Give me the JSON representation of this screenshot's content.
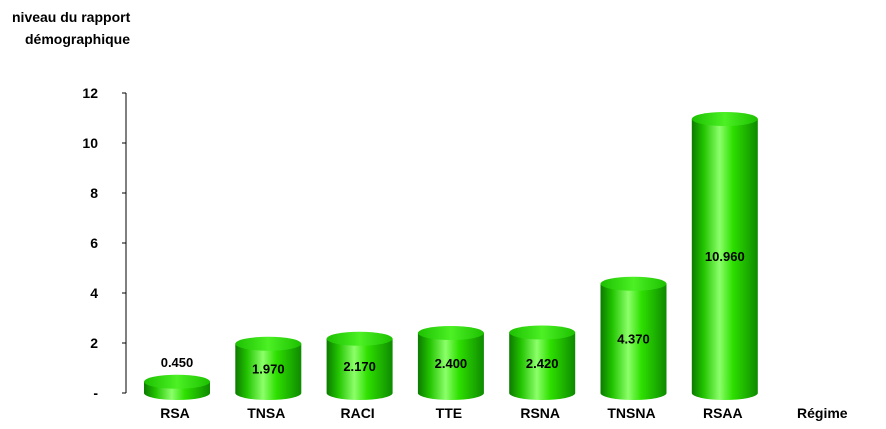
{
  "chart_data": {
    "type": "bar",
    "ylabel_lines": [
      "niveau du rapport",
      "démographique"
    ],
    "xlabel": "Régime",
    "categories": [
      "RSA",
      "TNSA",
      "RACI",
      "TTE",
      "RSNA",
      "TNSNA",
      "RSAA"
    ],
    "values": [
      0.45,
      1.97,
      2.17,
      2.4,
      2.42,
      4.37,
      10.96
    ],
    "value_labels": [
      "0.450",
      "1.970",
      "2.170",
      "2.400",
      "2.420",
      "4.370",
      "10.960"
    ],
    "ylim": [
      0,
      12
    ],
    "yticks": [
      0,
      2,
      4,
      6,
      8,
      10,
      12
    ],
    "ytick_labels": [
      "-",
      "2",
      "4",
      "6",
      "8",
      "10",
      "12"
    ],
    "grid": false,
    "bar_style": "3d-cylinder",
    "bar_color": "#22dd00"
  }
}
